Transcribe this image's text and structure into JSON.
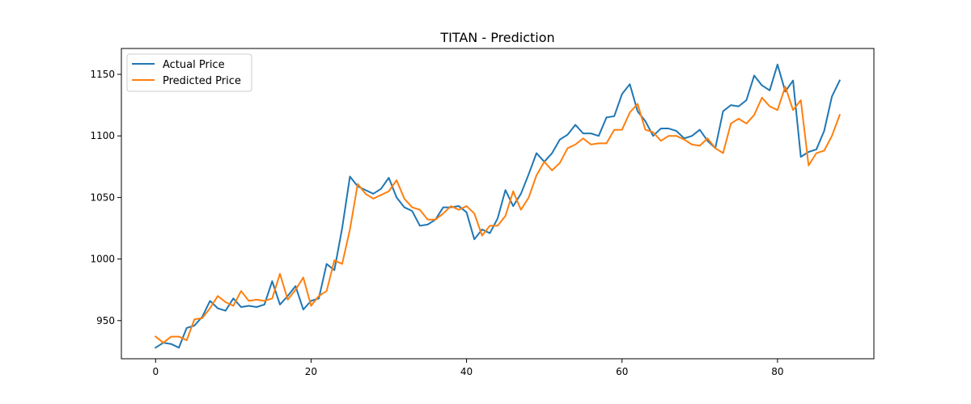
{
  "chart_data": {
    "type": "line",
    "title": "TITAN - Prediction",
    "xlabel": "",
    "ylabel": "",
    "xlim": [
      -4.4,
      92.4
    ],
    "ylim": [
      919,
      1171
    ],
    "x_ticks": [
      0,
      20,
      40,
      60,
      80
    ],
    "x_tick_labels": [
      "0",
      "20",
      "40",
      "60",
      "80"
    ],
    "y_ticks": [
      950,
      1000,
      1050,
      1100,
      1150
    ],
    "y_tick_labels": [
      "950",
      "1000",
      "1050",
      "1100",
      "1150"
    ],
    "grid": false,
    "legend_position": "upper-left",
    "series": [
      {
        "name": "Actual Price",
        "color": "#1f77b4",
        "values": [
          928,
          932,
          931,
          928,
          944,
          946,
          953,
          966,
          960,
          958,
          968,
          961,
          962,
          961,
          963,
          982,
          963,
          970,
          978,
          959,
          966,
          968,
          996,
          991,
          1025,
          1067,
          1059,
          1056,
          1053,
          1057,
          1066,
          1050,
          1042,
          1039,
          1027,
          1028,
          1032,
          1042,
          1042,
          1043,
          1038,
          1016,
          1024,
          1021,
          1033,
          1056,
          1043,
          1053,
          1069,
          1086,
          1079,
          1086,
          1097,
          1101,
          1109,
          1102,
          1102,
          1100,
          1115,
          1116,
          1134,
          1142,
          1120,
          1112,
          1100,
          1106,
          1106,
          1104,
          1098,
          1100,
          1105,
          1096,
          1090,
          1120,
          1125,
          1124,
          1129,
          1149,
          1141,
          1137,
          1158,
          1136,
          1145,
          1083,
          1087,
          1089,
          1104,
          1132,
          1145
        ]
      },
      {
        "name": "Predicted Price",
        "color": "#ff7f0e",
        "values": [
          937,
          932,
          937,
          937,
          934,
          951,
          952,
          960,
          970,
          965,
          962,
          974,
          966,
          967,
          966,
          968,
          988,
          967,
          975,
          985,
          962,
          970,
          974,
          999,
          996,
          1024,
          1061,
          1053,
          1049,
          1052,
          1055,
          1064,
          1049,
          1042,
          1040,
          1032,
          1032,
          1037,
          1043,
          1040,
          1043,
          1037,
          1019,
          1027,
          1027,
          1035,
          1055,
          1040,
          1050,
          1068,
          1079,
          1072,
          1078,
          1090,
          1093,
          1098,
          1093,
          1094,
          1094,
          1105,
          1105,
          1119,
          1126,
          1105,
          1103,
          1096,
          1100,
          1100,
          1097,
          1093,
          1092,
          1098,
          1090,
          1086,
          1110,
          1114,
          1110,
          1117,
          1131,
          1124,
          1121,
          1140,
          1121,
          1129,
          1076,
          1086,
          1088,
          1100,
          1117
        ]
      }
    ]
  }
}
